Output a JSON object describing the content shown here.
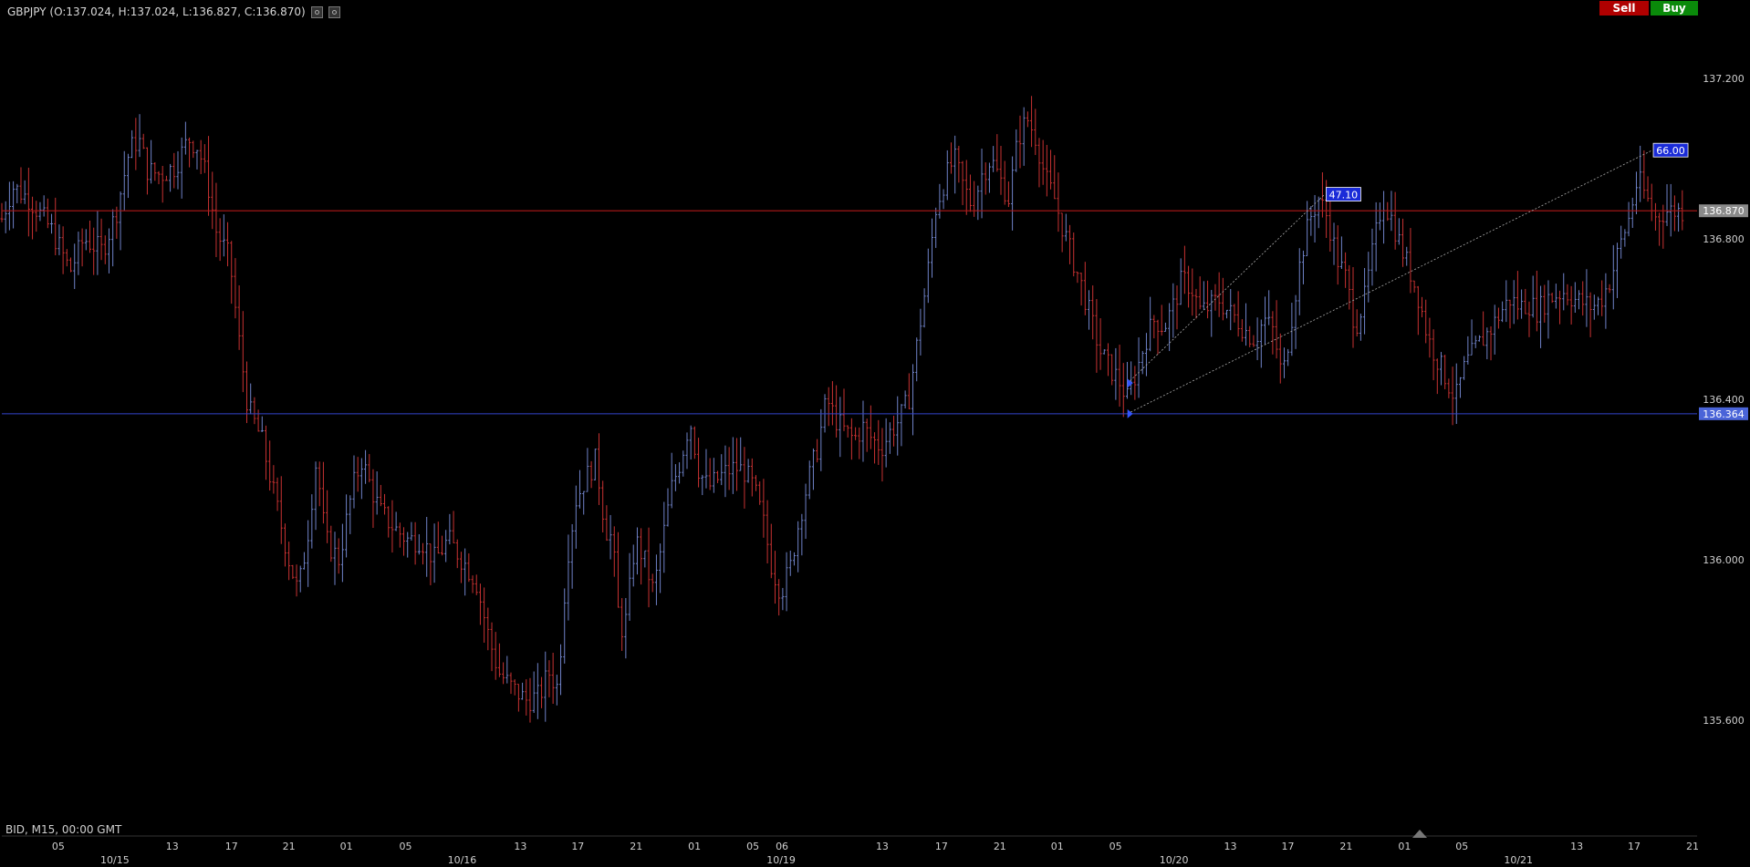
{
  "header": {
    "symbol_ohlc": "GBPJPY (O:137.024, H:137.024, L:136.827, C:136.870)",
    "settings_icon": "gear-icon",
    "target_icon": "target-icon"
  },
  "buttons": {
    "sell": "Sell",
    "buy": "Buy"
  },
  "footer": {
    "info": "BID, M15, 00:00 GMT"
  },
  "colors": {
    "up": "#6f82c8",
    "down": "#c83232",
    "bid_line": "#b01818",
    "support_line": "#3344cc",
    "background": "#000000"
  },
  "chart_data": {
    "type": "bar",
    "symbol": "GBPJPY",
    "timeframe": "M15",
    "ylim": [
      135.35,
      137.35
    ],
    "y_ticks": [
      "137.200",
      "136.800",
      "136.400",
      "136.000",
      "135.600"
    ],
    "y_tick_values": [
      137.2,
      136.8,
      136.4,
      136.0,
      135.6
    ],
    "x_ticks": [
      "05",
      "13",
      "17",
      "21",
      "01",
      "05",
      "13",
      "17",
      "21",
      "01",
      "05",
      "06",
      "13",
      "17",
      "21",
      "01",
      "05",
      "13",
      "17",
      "21",
      "01",
      "05",
      "13",
      "17",
      "21"
    ],
    "x_tick_index": [
      62,
      187,
      252,
      315,
      378,
      443,
      569,
      632,
      696,
      760,
      824,
      856,
      966,
      1031,
      1095,
      1158,
      1222,
      1348,
      1411,
      1475,
      1539,
      1602,
      1728,
      1791,
      1855
    ],
    "date_labels": [
      "10/15",
      "10/16",
      "10/19",
      "10/20",
      "10/21"
    ],
    "date_index": [
      124,
      505,
      855,
      1286,
      1664
    ],
    "current_price": {
      "label": "136.870",
      "value": 136.87,
      "color": "#b01818"
    },
    "support_level": {
      "label": "136.364",
      "value": 136.364,
      "color": "#3344cc"
    },
    "annotations": [
      {
        "label": "47.10",
        "x_index": 1451,
        "y_value": 136.91,
        "start_x_index": 1235,
        "start_y_value": 136.44
      },
      {
        "label": "66.00",
        "x_index": 1810,
        "y_value": 137.02,
        "start_x_index": 1235,
        "start_y_value": 136.364
      }
    ],
    "price_path": [
      [
        0,
        136.85
      ],
      [
        12,
        136.93
      ],
      [
        30,
        136.9
      ],
      [
        55,
        136.82
      ],
      [
        75,
        136.72
      ],
      [
        90,
        136.8
      ],
      [
        110,
        136.77
      ],
      [
        125,
        136.86
      ],
      [
        140,
        137.02
      ],
      [
        150,
        137.05
      ],
      [
        160,
        136.97
      ],
      [
        175,
        136.96
      ],
      [
        190,
        136.98
      ],
      [
        205,
        137.05
      ],
      [
        215,
        137.03
      ],
      [
        225,
        136.95
      ],
      [
        235,
        136.82
      ],
      [
        250,
        136.75
      ],
      [
        260,
        136.55
      ],
      [
        270,
        136.38
      ],
      [
        285,
        136.3
      ],
      [
        300,
        136.15
      ],
      [
        315,
        136.0
      ],
      [
        325,
        135.92
      ],
      [
        335,
        136.05
      ],
      [
        345,
        136.25
      ],
      [
        355,
        136.05
      ],
      [
        370,
        136.0
      ],
      [
        385,
        136.18
      ],
      [
        395,
        136.25
      ],
      [
        405,
        136.18
      ],
      [
        415,
        136.12
      ],
      [
        430,
        136.08
      ],
      [
        445,
        136.05
      ],
      [
        460,
        136.05
      ],
      [
        475,
        136.0
      ],
      [
        490,
        136.05
      ],
      [
        505,
        136.0
      ],
      [
        520,
        135.95
      ],
      [
        535,
        135.8
      ],
      [
        545,
        135.72
      ],
      [
        560,
        135.68
      ],
      [
        575,
        135.65
      ],
      [
        590,
        135.66
      ],
      [
        600,
        135.72
      ],
      [
        610,
        135.68
      ],
      [
        620,
        136.0
      ],
      [
        630,
        136.15
      ],
      [
        640,
        136.2
      ],
      [
        652,
        136.25
      ],
      [
        662,
        136.08
      ],
      [
        670,
        136.05
      ],
      [
        678,
        135.82
      ],
      [
        685,
        135.85
      ],
      [
        695,
        136.05
      ],
      [
        705,
        136.0
      ],
      [
        715,
        135.92
      ],
      [
        725,
        136.05
      ],
      [
        735,
        136.18
      ],
      [
        745,
        136.25
      ],
      [
        755,
        136.35
      ],
      [
        765,
        136.22
      ],
      [
        775,
        136.18
      ],
      [
        785,
        136.2
      ],
      [
        795,
        136.22
      ],
      [
        805,
        136.23
      ],
      [
        815,
        136.22
      ],
      [
        825,
        136.18
      ],
      [
        835,
        136.1
      ],
      [
        845,
        135.98
      ],
      [
        855,
        135.92
      ],
      [
        865,
        135.98
      ],
      [
        875,
        136.1
      ],
      [
        885,
        136.2
      ],
      [
        895,
        136.28
      ],
      [
        905,
        136.4
      ],
      [
        915,
        136.35
      ],
      [
        925,
        136.32
      ],
      [
        935,
        136.3
      ],
      [
        945,
        136.33
      ],
      [
        955,
        136.3
      ],
      [
        965,
        136.28
      ],
      [
        975,
        136.32
      ],
      [
        985,
        136.35
      ],
      [
        995,
        136.4
      ],
      [
        1005,
        136.55
      ],
      [
        1015,
        136.7
      ],
      [
        1025,
        136.88
      ],
      [
        1035,
        136.95
      ],
      [
        1045,
        137.0
      ],
      [
        1055,
        136.93
      ],
      [
        1065,
        136.88
      ],
      [
        1075,
        136.96
      ],
      [
        1085,
        137.0
      ],
      [
        1095,
        136.95
      ],
      [
        1105,
        136.9
      ],
      [
        1115,
        137.05
      ],
      [
        1125,
        137.1
      ],
      [
        1135,
        137.05
      ],
      [
        1145,
        136.95
      ],
      [
        1155,
        136.9
      ],
      [
        1165,
        136.82
      ],
      [
        1175,
        136.75
      ],
      [
        1185,
        136.68
      ],
      [
        1195,
        136.6
      ],
      [
        1205,
        136.52
      ],
      [
        1215,
        136.48
      ],
      [
        1225,
        136.45
      ],
      [
        1235,
        136.4
      ],
      [
        1245,
        136.47
      ],
      [
        1255,
        136.55
      ],
      [
        1265,
        136.6
      ],
      [
        1275,
        136.58
      ],
      [
        1285,
        136.63
      ],
      [
        1295,
        136.7
      ],
      [
        1305,
        136.68
      ],
      [
        1315,
        136.62
      ],
      [
        1325,
        136.63
      ],
      [
        1335,
        136.65
      ],
      [
        1345,
        136.62
      ],
      [
        1355,
        136.6
      ],
      [
        1365,
        136.57
      ],
      [
        1375,
        136.55
      ],
      [
        1385,
        136.6
      ],
      [
        1395,
        136.57
      ],
      [
        1405,
        136.45
      ],
      [
        1415,
        136.6
      ],
      [
        1425,
        136.75
      ],
      [
        1435,
        136.85
      ],
      [
        1445,
        136.9
      ],
      [
        1455,
        136.85
      ],
      [
        1465,
        136.75
      ],
      [
        1475,
        136.7
      ],
      [
        1485,
        136.58
      ],
      [
        1495,
        136.65
      ],
      [
        1505,
        136.78
      ],
      [
        1515,
        136.9
      ],
      [
        1525,
        136.85
      ],
      [
        1535,
        136.78
      ],
      [
        1545,
        136.72
      ],
      [
        1555,
        136.65
      ],
      [
        1565,
        136.55
      ],
      [
        1575,
        136.5
      ],
      [
        1585,
        136.45
      ],
      [
        1595,
        136.4
      ],
      [
        1605,
        136.48
      ],
      [
        1615,
        136.52
      ],
      [
        1625,
        136.55
      ],
      [
        1635,
        136.58
      ],
      [
        1645,
        136.62
      ],
      [
        1655,
        136.65
      ],
      [
        1665,
        136.63
      ],
      [
        1675,
        136.64
      ],
      [
        1685,
        136.62
      ],
      [
        1695,
        136.65
      ],
      [
        1705,
        136.66
      ],
      [
        1715,
        136.67
      ],
      [
        1725,
        136.65
      ],
      [
        1735,
        136.64
      ],
      [
        1745,
        136.63
      ],
      [
        1755,
        136.65
      ],
      [
        1765,
        136.7
      ],
      [
        1775,
        136.78
      ],
      [
        1785,
        136.85
      ],
      [
        1795,
        136.95
      ],
      [
        1805,
        136.9
      ],
      [
        1815,
        136.85
      ],
      [
        1825,
        136.87
      ]
    ],
    "xlim": [
      0,
      1845
    ],
    "xlabel": "",
    "ylabel": ""
  }
}
